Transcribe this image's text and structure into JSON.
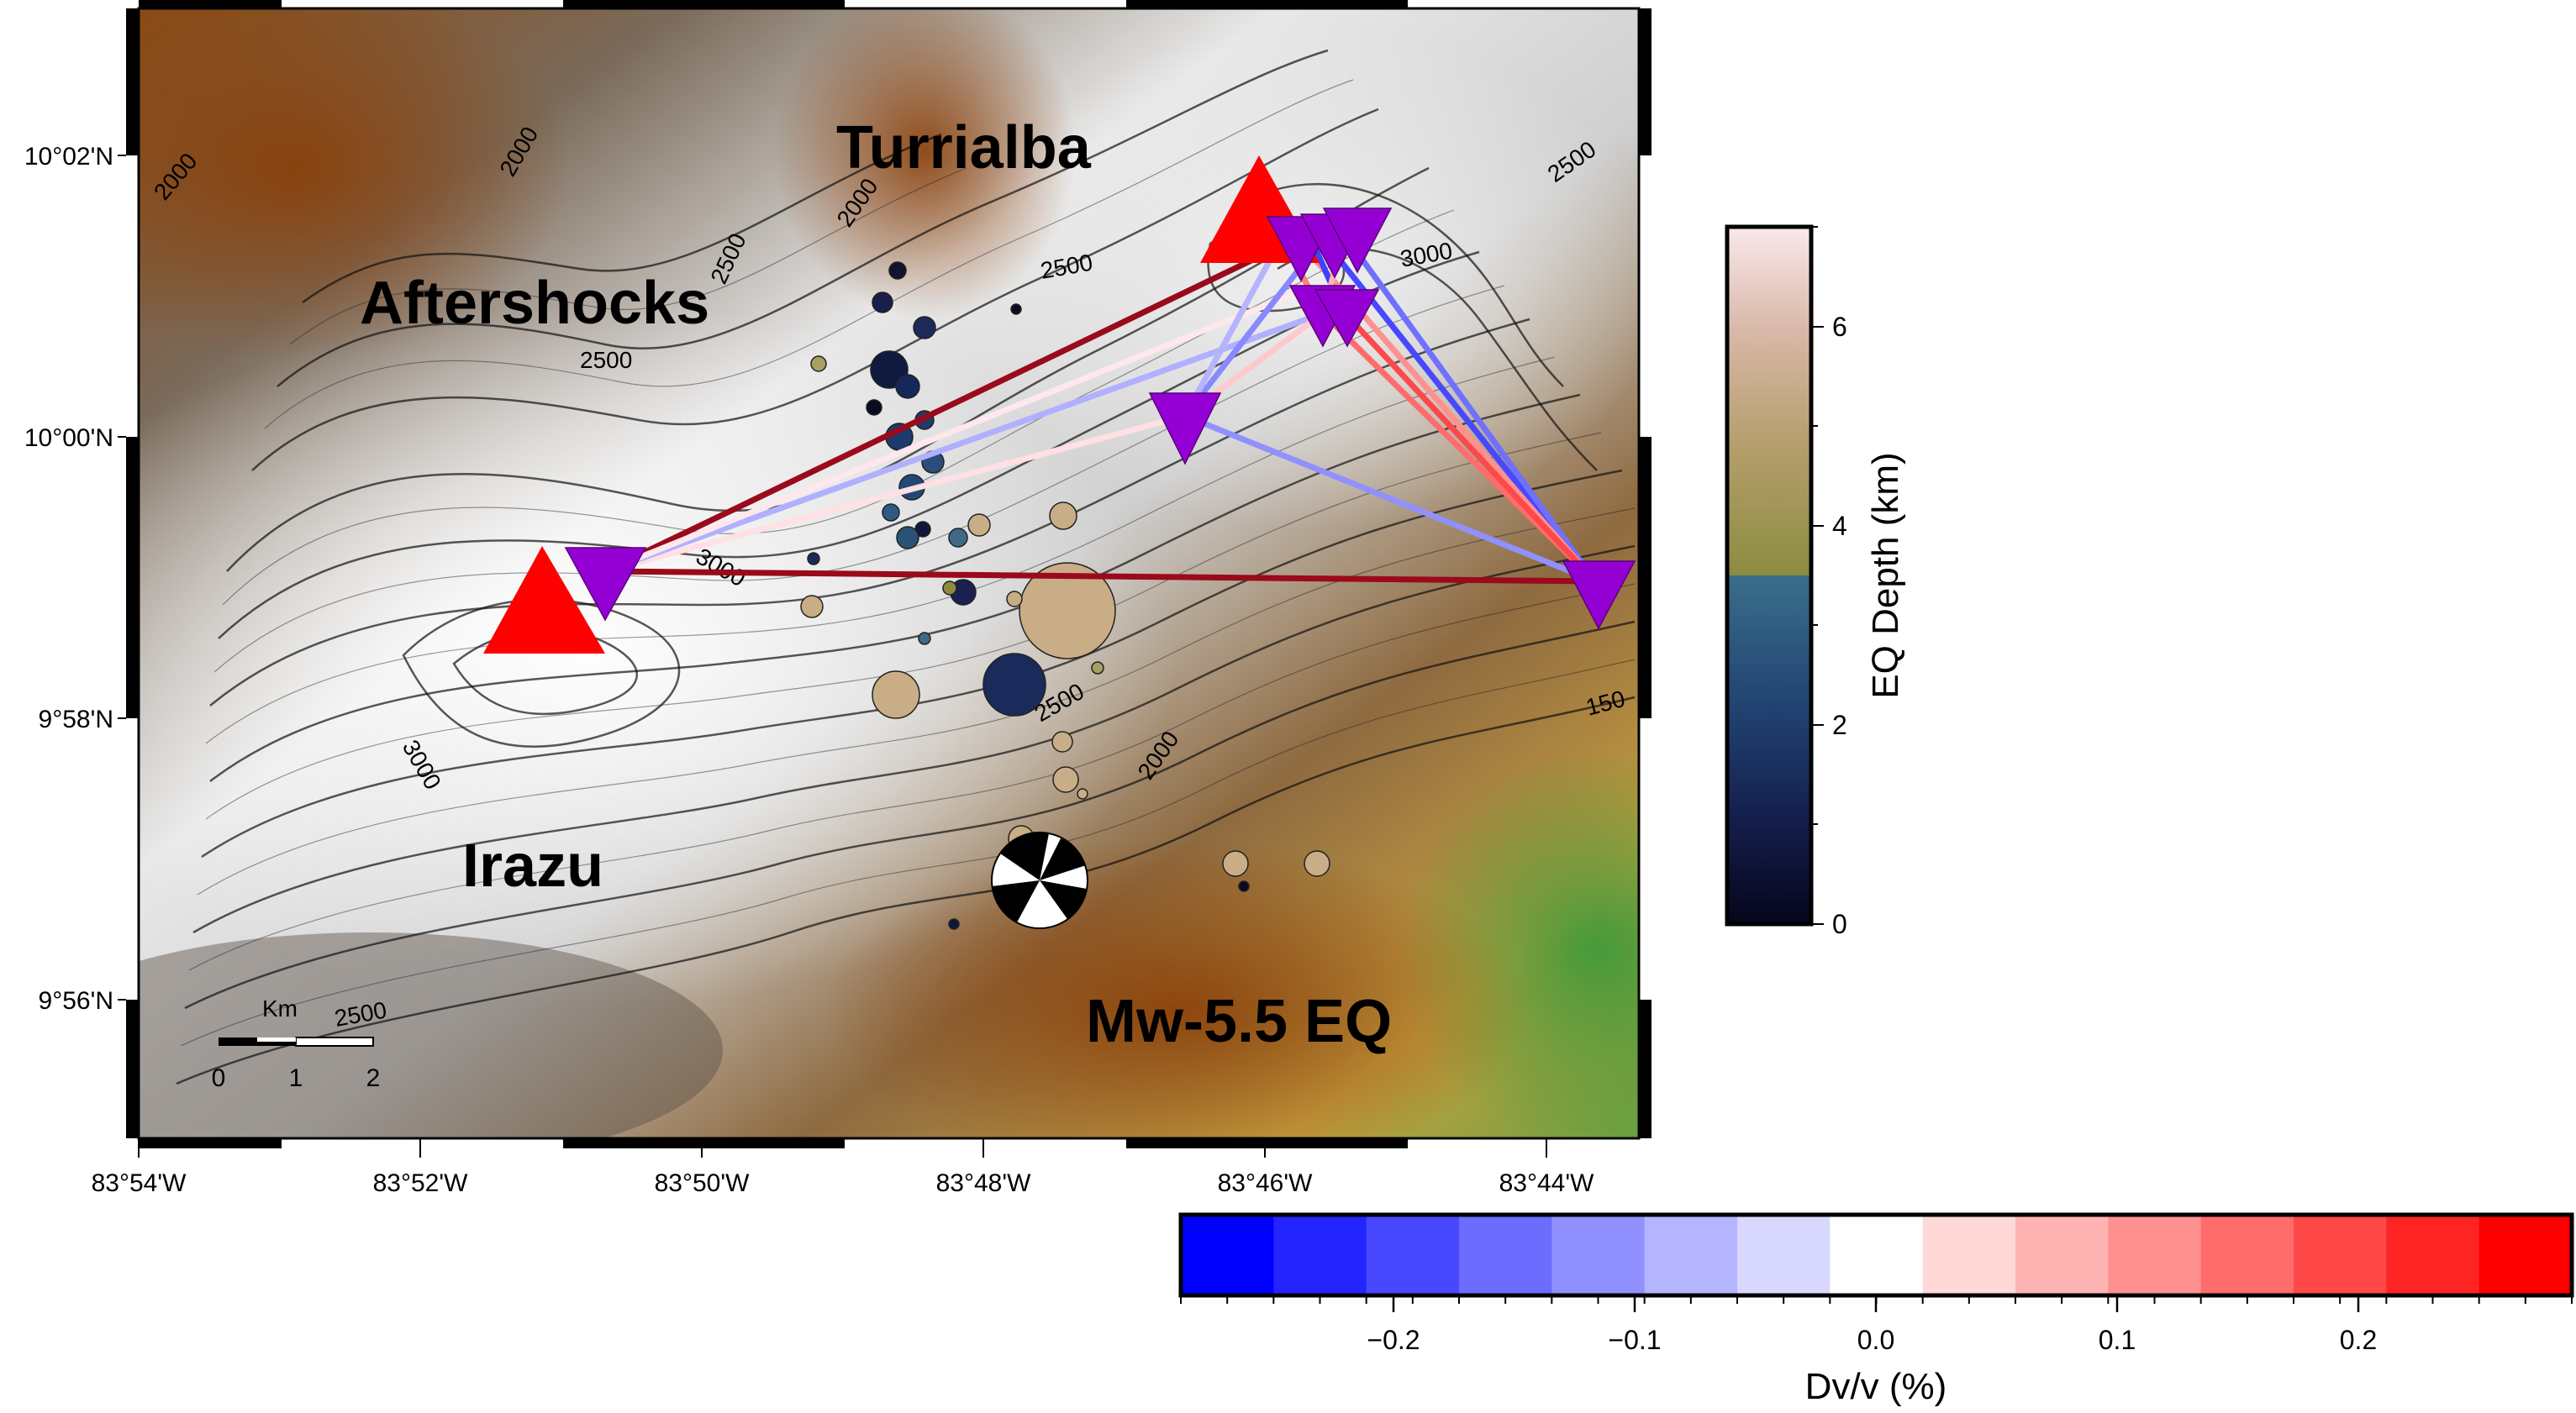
{
  "map": {
    "lon_ticks": [
      "83°54'W",
      "83°52'W",
      "83°50'W",
      "83°48'W",
      "83°46'W",
      "83°44'W"
    ],
    "lat_ticks": [
      "10°02'N",
      "10°00'N",
      "9°58'N",
      "9°56'N"
    ],
    "places": {
      "turrialba": "Turrialba",
      "aftershocks": "Aftershocks",
      "irazu": "Irazu",
      "eq": "Mw-5.5 EQ"
    },
    "contour_labels": [
      "2000",
      "2000",
      "2500",
      "2000",
      "2500",
      "2500",
      "3000",
      "2500",
      "3000",
      "2500",
      "2000",
      "3000",
      "2500",
      "150"
    ],
    "scalebar": {
      "title": "Km",
      "ticks": [
        "0",
        "1",
        "2"
      ]
    },
    "volcano_color": "#ff0000",
    "station_color": "#9400d3"
  },
  "depth_colorbar": {
    "label": "EQ Depth (km)",
    "ticks": [
      "0",
      "2",
      "4",
      "6"
    ],
    "range": [
      0,
      7
    ]
  },
  "dvv_colorbar": {
    "label": "Dv/v (%)",
    "ticks": [
      "−0.2",
      "−0.1",
      "0.0",
      "0.1",
      "0.2"
    ],
    "range": [
      -0.28,
      0.28
    ],
    "colors": [
      "#0000ff",
      "#2424ff",
      "#4848ff",
      "#6c6cff",
      "#9090ff",
      "#b4b4ff",
      "#d8d8ff",
      "#ffffff",
      "#ffd8d8",
      "#ffb4b4",
      "#ff9090",
      "#ff6c6c",
      "#ff4848",
      "#ff2424",
      "#ff0000"
    ]
  }
}
